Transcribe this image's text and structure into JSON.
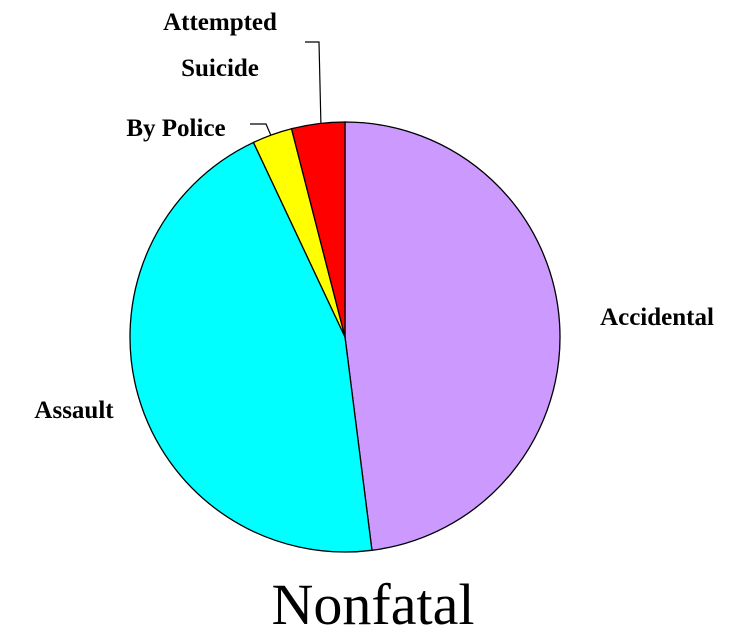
{
  "chart_data": {
    "type": "pie",
    "title": "Nonfatal",
    "categories": [
      "Accidental",
      "Assault",
      "By Police",
      "Attempted Suicide"
    ],
    "values": [
      48,
      45,
      3,
      4
    ],
    "colors": [
      "#cc99ff",
      "#00ffff",
      "#ffff00",
      "#ff0000"
    ],
    "start_angle": 0,
    "direction": "clockwise"
  }
}
